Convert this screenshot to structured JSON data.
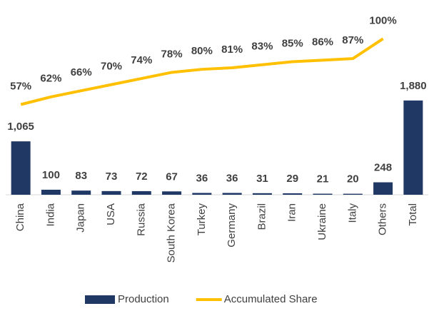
{
  "chart_data": {
    "type": "bar",
    "categories": [
      "China",
      "India",
      "Japan",
      "USA",
      "Russia",
      "South Korea",
      "Turkey",
      "Germany",
      "Brazil",
      "Iran",
      "Ukraine",
      "Italy",
      "Others",
      "Total"
    ],
    "series": [
      {
        "name": "Production",
        "type": "bar",
        "color": "#1f3864",
        "values": [
          1065,
          100,
          83,
          73,
          72,
          67,
          36,
          36,
          31,
          29,
          21,
          20,
          248,
          1880
        ],
        "value_labels": [
          "1,065",
          "100",
          "83",
          "73",
          "72",
          "67",
          "36",
          "36",
          "31",
          "29",
          "21",
          "20",
          "248",
          "1,880"
        ]
      },
      {
        "name": "Accumulated Share",
        "type": "line",
        "axis": "y2",
        "color": "#ffc000",
        "values": [
          57,
          62,
          66,
          70,
          74,
          78,
          80,
          81,
          83,
          85,
          86,
          87,
          100,
          null
        ],
        "value_labels": [
          "57%",
          "62%",
          "66%",
          "70%",
          "74%",
          "78%",
          "80%",
          "81%",
          "83%",
          "85%",
          "86%",
          "87%",
          "100%",
          null
        ]
      }
    ],
    "ylim": [
      0,
      3600
    ],
    "y2lim": [
      -2,
      116
    ],
    "legend": "bottom"
  }
}
